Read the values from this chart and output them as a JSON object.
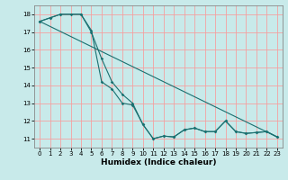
{
  "title": "",
  "xlabel": "Humidex (Indice chaleur)",
  "background_color": "#c8eaea",
  "grid_color": "#f5a0a0",
  "line_color": "#1a7070",
  "xlim": [
    -0.5,
    23.5
  ],
  "ylim": [
    10.5,
    18.5
  ],
  "xticks": [
    0,
    1,
    2,
    3,
    4,
    5,
    6,
    7,
    8,
    9,
    10,
    11,
    12,
    13,
    14,
    15,
    16,
    17,
    18,
    19,
    20,
    21,
    22,
    23
  ],
  "yticks": [
    11,
    12,
    13,
    14,
    15,
    16,
    17,
    18
  ],
  "line1_x": [
    0,
    1,
    2,
    3,
    4,
    5,
    6,
    7,
    8,
    9,
    10,
    11,
    12,
    13,
    14,
    15,
    16,
    17,
    18,
    19,
    20,
    21,
    22,
    23
  ],
  "line1_y": [
    17.6,
    17.8,
    18.0,
    18.0,
    18.0,
    17.0,
    15.5,
    14.2,
    13.5,
    13.0,
    11.8,
    11.0,
    11.15,
    11.1,
    11.5,
    11.6,
    11.4,
    11.4,
    12.0,
    11.4,
    11.3,
    11.35,
    11.4,
    11.1
  ],
  "line2_x": [
    0,
    1,
    2,
    4,
    5,
    6,
    7,
    8,
    9,
    10,
    11,
    12,
    13,
    14,
    15,
    16,
    17,
    18,
    19,
    20,
    21,
    22,
    23
  ],
  "line2_y": [
    17.6,
    17.8,
    18.0,
    18.0,
    17.1,
    14.2,
    13.8,
    13.0,
    12.9,
    11.8,
    11.0,
    11.15,
    11.1,
    11.5,
    11.6,
    11.4,
    11.4,
    12.0,
    11.4,
    11.3,
    11.35,
    11.4,
    11.1
  ],
  "line3_x": [
    0,
    23
  ],
  "line3_y": [
    17.6,
    11.1
  ],
  "xlabel_fontsize": 6.5,
  "tick_labelsize": 5,
  "markersize": 1.8,
  "linewidth": 0.8
}
